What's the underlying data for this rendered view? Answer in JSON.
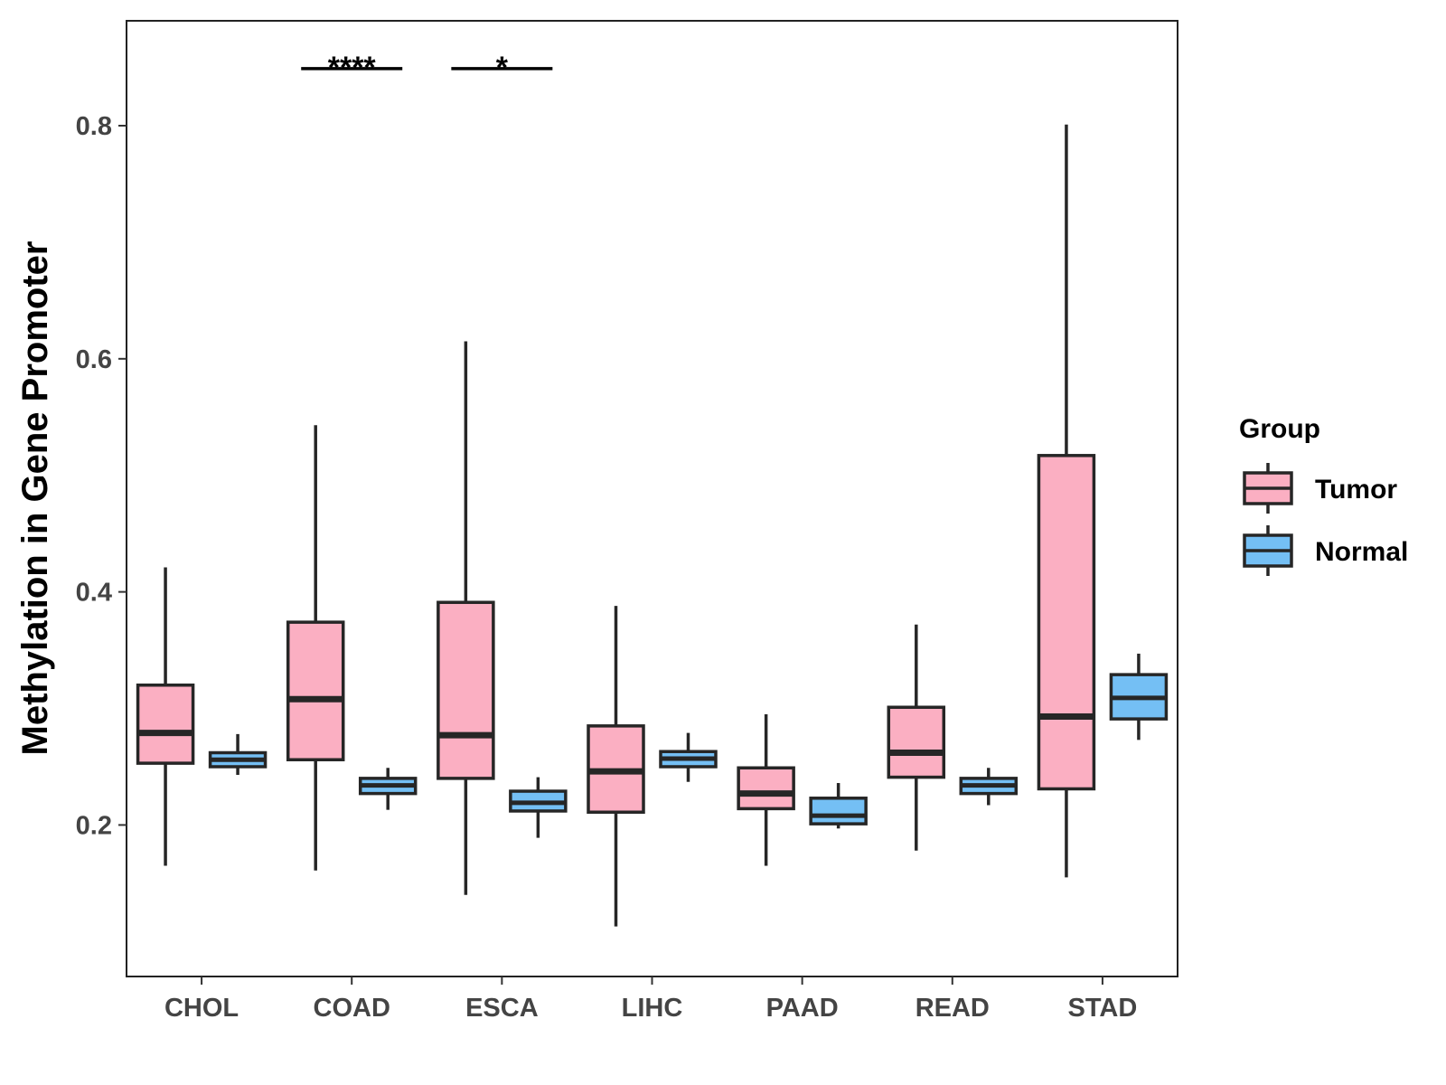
{
  "chart_data": {
    "type": "boxplot",
    "title": "",
    "xlabel": "",
    "ylabel": "Methylation in Gene Promoter",
    "ylim": [
      0.07,
      0.89
    ],
    "yticks": [
      0.2,
      0.4,
      0.6,
      0.8
    ],
    "ytick_labels": [
      "0.2",
      "0.4",
      "0.6",
      "0.8"
    ],
    "categories": [
      "CHOL",
      "COAD",
      "ESCA",
      "LIHC",
      "PAAD",
      "READ",
      "STAD"
    ],
    "legend": {
      "title": "Group",
      "position": "right",
      "entries": [
        {
          "name": "Tumor",
          "color": "#fbafc2"
        },
        {
          "name": "Normal",
          "color": "#74bff4"
        }
      ]
    },
    "series": [
      {
        "name": "Tumor",
        "color": "#fbafc2",
        "boxes": [
          {
            "category": "CHOL",
            "whisker_low": 0.165,
            "q1": 0.253,
            "median": 0.279,
            "q3": 0.32,
            "whisker_high": 0.421
          },
          {
            "category": "COAD",
            "whisker_low": 0.161,
            "q1": 0.256,
            "median": 0.308,
            "q3": 0.374,
            "whisker_high": 0.543
          },
          {
            "category": "ESCA",
            "whisker_low": 0.14,
            "q1": 0.24,
            "median": 0.277,
            "q3": 0.391,
            "whisker_high": 0.615
          },
          {
            "category": "LIHC",
            "whisker_low": 0.113,
            "q1": 0.211,
            "median": 0.246,
            "q3": 0.285,
            "whisker_high": 0.388
          },
          {
            "category": "PAAD",
            "whisker_low": 0.165,
            "q1": 0.214,
            "median": 0.227,
            "q3": 0.249,
            "whisker_high": 0.295
          },
          {
            "category": "READ",
            "whisker_low": 0.178,
            "q1": 0.241,
            "median": 0.262,
            "q3": 0.301,
            "whisker_high": 0.372
          },
          {
            "category": "STAD",
            "whisker_low": 0.155,
            "q1": 0.231,
            "median": 0.293,
            "q3": 0.517,
            "whisker_high": 0.801
          }
        ]
      },
      {
        "name": "Normal",
        "color": "#74bff4",
        "boxes": [
          {
            "category": "CHOL",
            "whisker_low": 0.243,
            "q1": 0.25,
            "median": 0.256,
            "q3": 0.262,
            "whisker_high": 0.278
          },
          {
            "category": "COAD",
            "whisker_low": 0.213,
            "q1": 0.227,
            "median": 0.234,
            "q3": 0.24,
            "whisker_high": 0.249
          },
          {
            "category": "ESCA",
            "whisker_low": 0.189,
            "q1": 0.212,
            "median": 0.219,
            "q3": 0.229,
            "whisker_high": 0.241
          },
          {
            "category": "LIHC",
            "whisker_low": 0.237,
            "q1": 0.25,
            "median": 0.257,
            "q3": 0.263,
            "whisker_high": 0.279
          },
          {
            "category": "PAAD",
            "whisker_low": 0.197,
            "q1": 0.201,
            "median": 0.208,
            "q3": 0.223,
            "whisker_high": 0.236
          },
          {
            "category": "READ",
            "whisker_low": 0.217,
            "q1": 0.227,
            "median": 0.234,
            "q3": 0.24,
            "whisker_high": 0.249
          },
          {
            "category": "STAD",
            "whisker_low": 0.273,
            "q1": 0.291,
            "median": 0.309,
            "q3": 0.329,
            "whisker_high": 0.347
          }
        ]
      }
    ],
    "annotations": [
      {
        "category": "COAD",
        "label": "****",
        "y": 0.849
      },
      {
        "category": "ESCA",
        "label": "*",
        "y": 0.849
      }
    ],
    "grid": false
  }
}
